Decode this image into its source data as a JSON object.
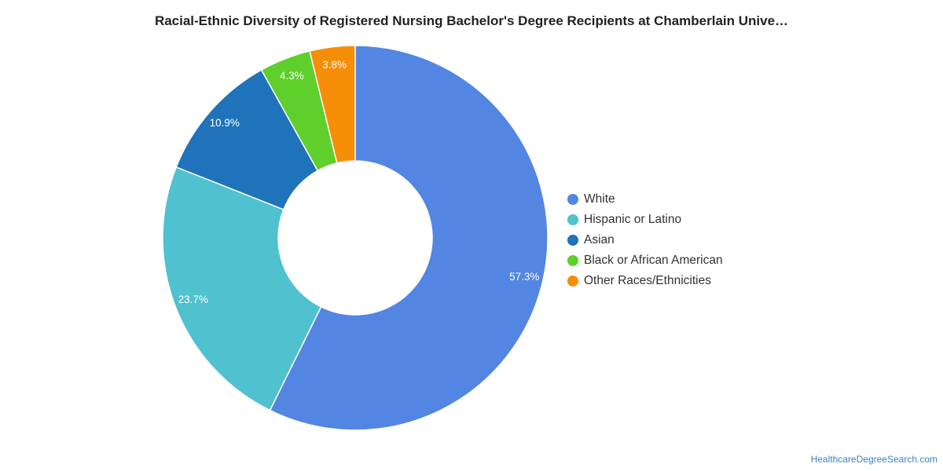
{
  "chart_data": {
    "type": "pie",
    "title": "Racial-Ethnic Diversity of Registered Nursing Bachelor's Degree Recipients at Chamberlain Unive…",
    "categories": [
      "White",
      "Hispanic or Latino",
      "Asian",
      "Black or African American",
      "Other Races/Ethnicities"
    ],
    "values": [
      57.3,
      23.7,
      10.9,
      4.3,
      3.8
    ],
    "value_labels": [
      "57.3%",
      "23.7%",
      "10.9%",
      "4.3%",
      "3.8%"
    ],
    "colors": [
      "#5385e2",
      "#50c1cf",
      "#1f73ba",
      "#5ecf2b",
      "#f78e08"
    ],
    "donut": true,
    "legend_placement": "right"
  },
  "credit": "HealthcareDegreeSearch.com"
}
